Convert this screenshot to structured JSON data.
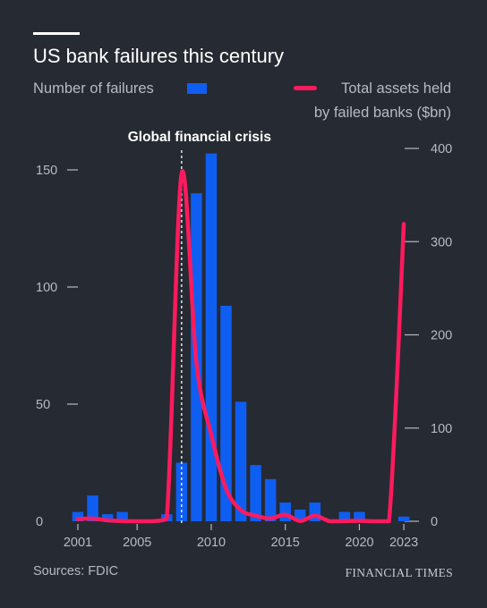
{
  "title": "US bank failures this century",
  "legend": {
    "bars_label": "Number of failures",
    "line_label_1": "Total assets held",
    "line_label_2": "by failed banks ($bn)"
  },
  "source": "Sources: FDIC",
  "brand": "FINANCIAL TIMES",
  "colors": {
    "background": "#262a33",
    "bars": "#0f5ef2",
    "line": "#ff1a5e",
    "text": "#b7bac0"
  },
  "chart_data": {
    "type": "bar",
    "x": [
      2001,
      2002,
      2003,
      2004,
      2005,
      2006,
      2007,
      2008,
      2009,
      2010,
      2011,
      2012,
      2013,
      2014,
      2015,
      2016,
      2017,
      2018,
      2019,
      2020,
      2021,
      2022,
      2023
    ],
    "x_tick_labels": [
      "2001",
      "2005",
      "2010",
      "2015",
      "2020",
      "2023"
    ],
    "series": [
      {
        "name": "Number of failures",
        "type": "bar",
        "axis": "left",
        "values": [
          4,
          11,
          3,
          4,
          0,
          0,
          3,
          25,
          140,
          157,
          92,
          51,
          24,
          18,
          8,
          5,
          8,
          0,
          4,
          4,
          0,
          0,
          2
        ]
      },
      {
        "name": "Total assets held by failed banks ($bn)",
        "type": "line",
        "axis": "right",
        "values": [
          2.4,
          2.9,
          1.0,
          0.2,
          0,
          0,
          2.6,
          373,
          170,
          93,
          35,
          12,
          6,
          3,
          7,
          0.3,
          6,
          0,
          0.2,
          0.5,
          0,
          0,
          319
        ]
      }
    ],
    "y_left": {
      "ticks": [
        0,
        50,
        100,
        150
      ],
      "ylim": [
        0,
        160
      ]
    },
    "y_right": {
      "ticks": [
        0,
        100,
        200,
        300,
        400
      ],
      "ylim": [
        0,
        400
      ]
    },
    "annotation": {
      "label": "Global financial crisis",
      "x": 2008
    },
    "grid": false,
    "legend_position": "top"
  }
}
